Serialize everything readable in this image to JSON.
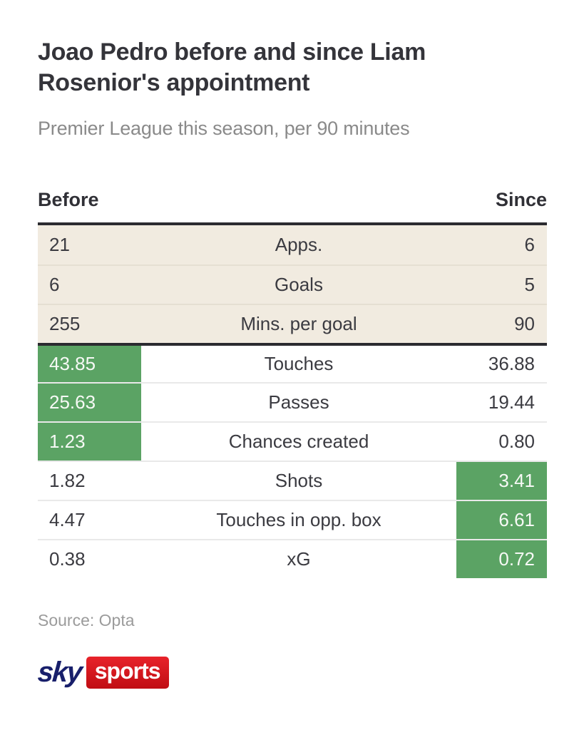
{
  "header": {
    "title": "Joao Pedro before and since Liam Rosenior's appointment",
    "subtitle": "Premier League this season, per 90 minutes"
  },
  "columns": {
    "before_label": "Before",
    "since_label": "Since"
  },
  "chart_data": {
    "type": "table",
    "title": "Joao Pedro before and since Liam Rosenior's appointment",
    "subtitle": "Premier League this season, per 90 minutes",
    "columns": [
      "Before",
      "Stat",
      "Since"
    ],
    "rows": [
      {
        "before": "21",
        "label": "Apps.",
        "since": "6",
        "highlight": "none",
        "section": "totals"
      },
      {
        "before": "6",
        "label": "Goals",
        "since": "5",
        "highlight": "none",
        "section": "totals"
      },
      {
        "before": "255",
        "label": "Mins. per goal",
        "since": "90",
        "highlight": "none",
        "section": "totals"
      },
      {
        "before": "43.85",
        "label": "Touches",
        "since": "36.88",
        "highlight": "before",
        "section": "per90"
      },
      {
        "before": "25.63",
        "label": "Passes",
        "since": "19.44",
        "highlight": "before",
        "section": "per90"
      },
      {
        "before": "1.23",
        "label": "Chances created",
        "since": "0.80",
        "highlight": "before",
        "section": "per90"
      },
      {
        "before": "1.82",
        "label": "Shots",
        "since": "3.41",
        "highlight": "since",
        "section": "per90"
      },
      {
        "before": "4.47",
        "label": "Touches in opp. box",
        "since": "6.61",
        "highlight": "since",
        "section": "per90"
      },
      {
        "before": "0.38",
        "label": "xG",
        "since": "0.72",
        "highlight": "since",
        "section": "per90"
      }
    ],
    "colors": {
      "highlight_green": "#5ba364",
      "totals_row_beige": "#f1ebe0",
      "heavy_border": "#2b2b30",
      "logo_navy": "#181f6b",
      "logo_red": "#d6131a"
    }
  },
  "footer": {
    "source": "Source: Opta",
    "logo_sky": "sky",
    "logo_sports": "sports"
  }
}
